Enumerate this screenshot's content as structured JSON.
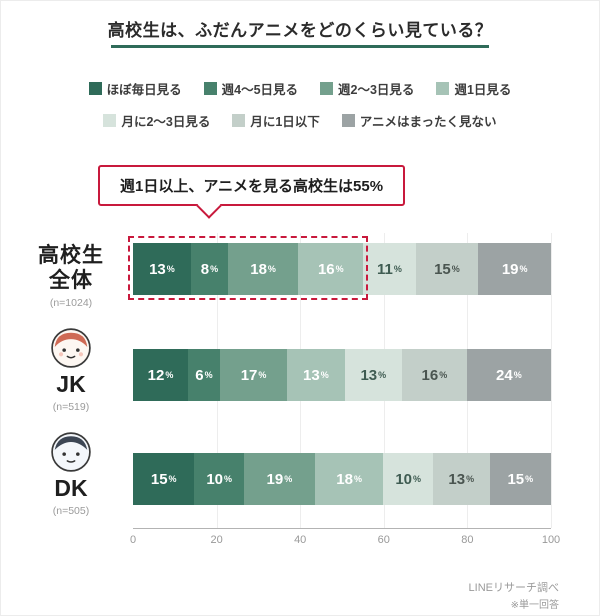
{
  "chart_data": {
    "type": "bar",
    "variant": "horizontal-stacked",
    "title": "高校生は、ふだんアニメをどのくらい見ている？",
    "categories": [
      "高校生全体",
      "JK",
      "DK"
    ],
    "sample_sizes": [
      "(n=1024)",
      "(n=519)",
      "(n=505)"
    ],
    "series": [
      {
        "name": "ほぼ毎日見る",
        "color": "#2F6B59",
        "text_color": "#FFFFFF",
        "values": [
          13,
          12,
          15
        ]
      },
      {
        "name": "週4〜5日見る",
        "color": "#47816C",
        "text_color": "#FFFFFF",
        "values": [
          8,
          6,
          10
        ]
      },
      {
        "name": "週2〜3日見る",
        "color": "#74A08D",
        "text_color": "#FFFFFF",
        "values": [
          18,
          17,
          19
        ]
      },
      {
        "name": "週1日見る",
        "color": "#A6C3B6",
        "text_color": "#FFFFFF",
        "values": [
          16,
          13,
          18
        ]
      },
      {
        "name": "月に2〜3日見る",
        "color": "#D6E3DC",
        "text_color": "#3F5C52",
        "values": [
          11,
          13,
          10
        ]
      },
      {
        "name": "月に1日以下",
        "color": "#C3CFC9",
        "text_color": "#4A5550",
        "values": [
          15,
          16,
          13
        ]
      },
      {
        "name": "アニメはまったく見ない",
        "color": "#9CA3A4",
        "text_color": "#FFFFFF",
        "values": [
          19,
          24,
          15
        ]
      }
    ],
    "x_ticks": [
      0,
      20,
      40,
      60,
      80,
      100
    ],
    "xlim": [
      0,
      100
    ],
    "legend_position": "top",
    "grid": true
  },
  "annotation": {
    "text": "週1日以上、アニメを見る高校生は55%",
    "highlight_span_percent": 55,
    "accent_color": "#C8193C"
  },
  "rows": [
    {
      "label_lines": [
        "高校生",
        "全体"
      ],
      "n": "(n=1024)"
    },
    {
      "label": "JK",
      "n": "(n=519)"
    },
    {
      "label": "DK",
      "n": "(n=505)"
    }
  ],
  "footer": {
    "source": "LINEリサーチ調べ",
    "note": "※単一回答"
  }
}
